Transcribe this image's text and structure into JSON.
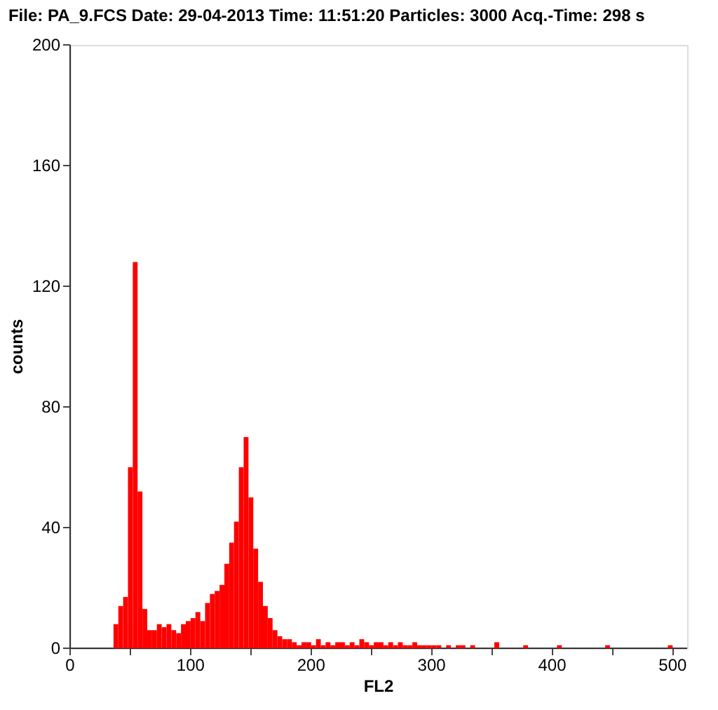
{
  "chart_data": {
    "type": "histogram",
    "title": "File: PA_9.FCS   Date: 29-04-2013   Time: 11:51:20    Particles: 3000   Acq.-Time: 298 s",
    "xlabel": "FL2",
    "ylabel": "counts",
    "color": "#ff0000",
    "bins": [
      36,
      40,
      44,
      48,
      52,
      56,
      60,
      64,
      68,
      72,
      76,
      80,
      84,
      88,
      92,
      96,
      100,
      104,
      108,
      112,
      116,
      120,
      124,
      128,
      132,
      136,
      140,
      144,
      148,
      152,
      156,
      160,
      164,
      168,
      172,
      176,
      180,
      184,
      188,
      192,
      196,
      200,
      204,
      208,
      212,
      216,
      220,
      224,
      228,
      232,
      236,
      240,
      244,
      248,
      252,
      256,
      260,
      264,
      268,
      272,
      276,
      280,
      284,
      288,
      292,
      296,
      300,
      304,
      308,
      312,
      316,
      320,
      324,
      328,
      332,
      336,
      340,
      344,
      348,
      352,
      356,
      360,
      364,
      368,
      372,
      376,
      380,
      384,
      388,
      392,
      396,
      400,
      404,
      408,
      412,
      416,
      420,
      424,
      428,
      432,
      436,
      440,
      444,
      448,
      452,
      456,
      460,
      464,
      468,
      472,
      476,
      480,
      484,
      488,
      492,
      496,
      500,
      504,
      508,
      512
    ],
    "values": [
      8,
      14,
      17,
      60,
      128,
      52,
      13,
      6,
      6,
      8,
      7,
      8,
      6,
      5,
      8,
      9,
      10,
      12,
      9,
      15,
      18,
      19,
      21,
      28,
      35,
      42,
      60,
      70,
      50,
      33,
      22,
      14,
      10,
      6,
      4,
      3,
      3,
      2,
      1,
      2,
      2,
      1,
      3,
      1,
      2,
      1,
      2,
      2,
      1,
      2,
      1,
      3,
      2,
      1,
      2,
      2,
      1,
      2,
      1,
      2,
      1,
      1,
      2,
      1,
      1,
      1,
      1,
      1,
      0,
      1,
      0,
      1,
      1,
      0,
      1,
      0,
      0,
      0,
      0,
      2,
      0,
      0,
      0,
      0,
      0,
      1,
      0,
      0,
      0,
      0,
      0,
      0,
      1,
      0,
      0,
      0,
      0,
      0,
      0,
      0,
      0,
      0,
      1,
      0,
      0,
      0,
      0,
      0,
      0,
      0,
      0,
      0,
      0,
      0,
      0,
      1,
      0,
      0,
      0
    ],
    "xlim": [
      0,
      512
    ],
    "ylim": [
      0,
      200
    ],
    "xticks": [
      0,
      {
        "value": 50,
        "label": null
      },
      100,
      {
        "value": 150,
        "label": null
      },
      200,
      {
        "value": 250,
        "label": null
      },
      300,
      {
        "value": 350,
        "label": null
      },
      400,
      {
        "value": 450,
        "label": null
      },
      500
    ],
    "yticks": [
      0,
      40,
      80,
      120,
      160,
      200
    ],
    "grid": false
  }
}
